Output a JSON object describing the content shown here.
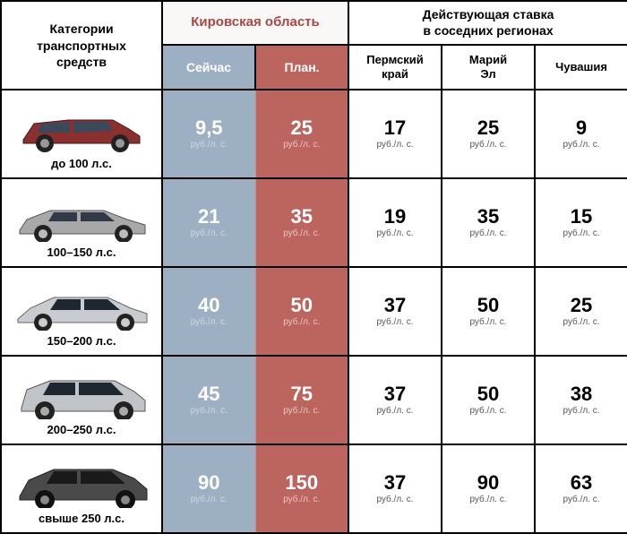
{
  "headers": {
    "categories": "Категории\nтранспортных\nсредств",
    "kirov": "Кировская область",
    "neighbor": "Действующая ставка\nв соседних регионах",
    "now": "Сейчас",
    "plan": "План.",
    "perm": "Пермский\nкрай",
    "marii": "Марий\nЭл",
    "chuvash": "Чувашия"
  },
  "unit": "руб./л. с.",
  "rows": [
    {
      "label": "до 100 л.с.",
      "now": "9,5",
      "plan": "25",
      "perm": "17",
      "marii": "25",
      "chuvash": "9",
      "car": "hatchback-red"
    },
    {
      "label": "100–150 л.с.",
      "now": "21",
      "plan": "35",
      "perm": "19",
      "marii": "35",
      "chuvash": "15",
      "car": "sedan-grey"
    },
    {
      "label": "150–200 л.с.",
      "now": "40",
      "plan": "50",
      "perm": "37",
      "marii": "50",
      "chuvash": "25",
      "car": "sedan-silver"
    },
    {
      "label": "200–250 л.с.",
      "now": "45",
      "plan": "75",
      "perm": "37",
      "marii": "50",
      "chuvash": "38",
      "car": "suv-silver"
    },
    {
      "label": "свыше 250 л.с.",
      "now": "90",
      "plan": "150",
      "perm": "37",
      "marii": "90",
      "chuvash": "63",
      "car": "suv-dark"
    }
  ],
  "colors": {
    "now_bg": "#9db0c3",
    "plan_bg": "#bc655e",
    "kirov_text": "#a94646"
  }
}
